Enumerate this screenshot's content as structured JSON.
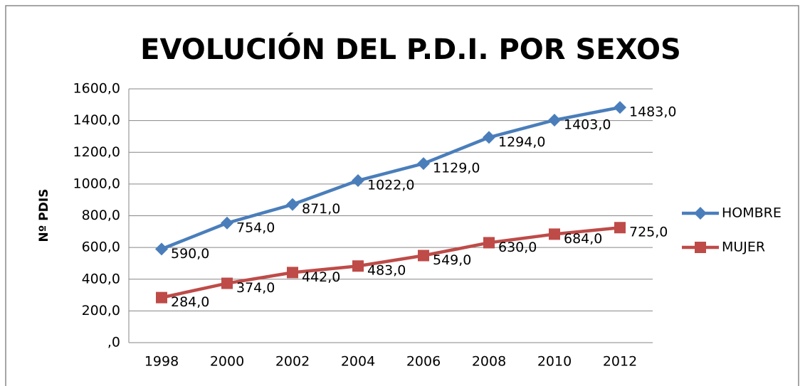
{
  "chart_data": {
    "type": "line",
    "title": "EVOLUCIÓN DEL P.D.I. POR SEXOS",
    "y_label": "Nº PDIS",
    "categories": [
      "1998",
      "2000",
      "2002",
      "2004",
      "2006",
      "2008",
      "2010",
      "2012"
    ],
    "series": [
      {
        "name": "HOMBRE",
        "color": "#4a7ebb",
        "marker": "diamond",
        "values": [
          590,
          754,
          871,
          1022,
          1129,
          1294,
          1403,
          1483
        ],
        "value_labels": [
          "590,0",
          "754,0",
          "871,0",
          "1022,0",
          "1129,0",
          "1294,0",
          "1403,0",
          "1483,0"
        ]
      },
      {
        "name": "MUJER",
        "color": "#be4b48",
        "marker": "square",
        "values": [
          284,
          374,
          442,
          483,
          549,
          630,
          684,
          725
        ],
        "value_labels": [
          "284,0",
          "374,0",
          "442,0",
          "483,0",
          "549,0",
          "630,0",
          "684,0",
          "725,0"
        ]
      }
    ],
    "ylim": [
      0,
      1600
    ],
    "yticks": [
      {
        "value": 0,
        "label": ",0"
      },
      {
        "value": 200,
        "label": "200,0"
      },
      {
        "value": 400,
        "label": "400,0"
      },
      {
        "value": 600,
        "label": "600,0"
      },
      {
        "value": 800,
        "label": "800,0"
      },
      {
        "value": 1000,
        "label": "1000,0"
      },
      {
        "value": 1200,
        "label": "1200,0"
      },
      {
        "value": 1400,
        "label": "1400,0"
      },
      {
        "value": 1600,
        "label": "1600,0"
      }
    ],
    "grid": true,
    "legend": "right"
  }
}
